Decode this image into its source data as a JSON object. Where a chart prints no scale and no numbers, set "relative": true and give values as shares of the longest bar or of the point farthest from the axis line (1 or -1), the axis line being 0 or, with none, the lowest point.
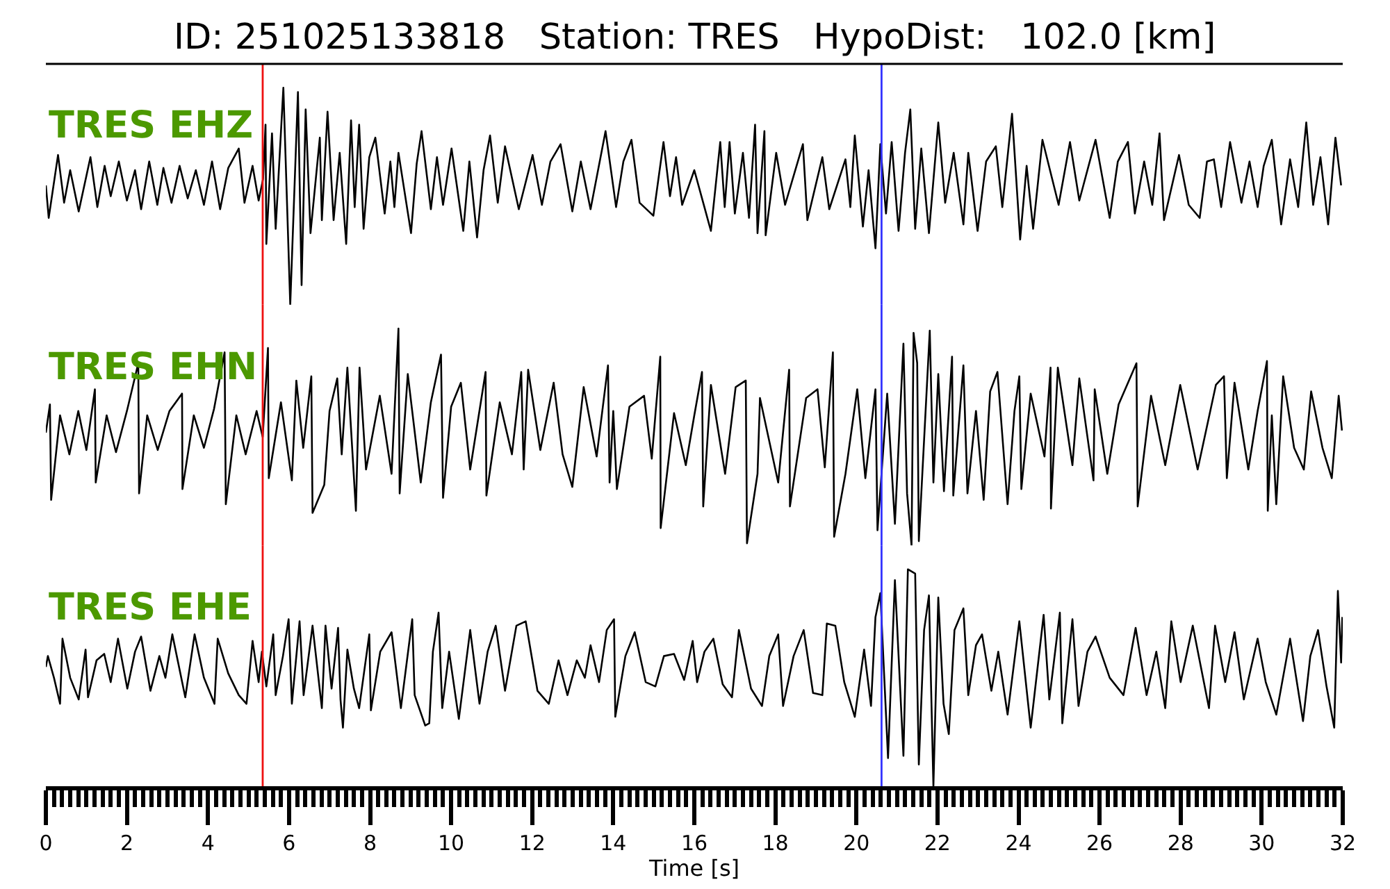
{
  "chart_data": [
    {
      "type": "line",
      "title": "ID: 251025133818   Station: TRES   HypoDist:   102.0 [km]",
      "relative": true,
      "xlim": [
        0,
        32
      ],
      "tick_labels": false,
      "ref_lines": [
        {
          "axis": "x",
          "value": 5.35,
          "color": "#ee1111"
        },
        {
          "axis": "x",
          "value": 20.62,
          "color": "#3333ff"
        }
      ],
      "x": [
        0,
        0.07,
        0.3,
        0.45,
        0.6,
        0.81,
        1.1,
        1.27,
        1.45,
        1.6,
        1.8,
        2.0,
        2.2,
        2.35,
        2.55,
        2.75,
        2.9,
        3.1,
        3.3,
        3.5,
        3.7,
        3.9,
        4.1,
        4.3,
        4.5,
        4.76,
        4.9,
        5.1,
        5.25,
        5.36,
        5.42,
        5.44,
        5.58,
        5.67,
        5.86,
        6.03,
        6.22,
        6.31,
        6.41,
        6.53,
        6.76,
        6.81,
        6.95,
        7.1,
        7.25,
        7.41,
        7.53,
        7.62,
        7.73,
        7.84,
        7.98,
        8.13,
        8.36,
        8.5,
        8.6,
        8.7,
        9.01,
        9.15,
        9.27,
        9.5,
        9.65,
        9.8,
        10.01,
        10.3,
        10.45,
        10.64,
        10.8,
        10.96,
        11.15,
        11.33,
        11.67,
        12.01,
        12.24,
        12.45,
        12.7,
        12.99,
        13.2,
        13.44,
        13.81,
        14.07,
        14.25,
        14.45,
        14.65,
        14.99,
        15.24,
        15.4,
        15.55,
        15.7,
        16.0,
        16.41,
        16.64,
        16.75,
        16.87,
        17.0,
        17.2,
        17.35,
        17.5,
        17.56,
        17.73,
        17.76,
        18.02,
        18.24,
        18.68,
        18.79,
        19.16,
        19.33,
        19.73,
        19.85,
        19.96,
        20.16,
        20.3,
        20.47,
        20.59,
        20.73,
        20.87,
        21.04,
        21.2,
        21.33,
        21.45,
        21.6,
        21.79,
        22.02,
        22.19,
        22.4,
        22.64,
        22.76,
        22.99,
        23.2,
        23.44,
        23.6,
        23.84,
        24.04,
        24.2,
        24.36,
        24.59,
        24.99,
        25.27,
        25.5,
        25.9,
        26.25,
        26.45,
        26.7,
        26.87,
        27.1,
        27.3,
        27.48,
        27.59,
        27.96,
        28.2,
        28.47,
        28.65,
        28.82,
        29.0,
        29.22,
        29.5,
        29.7,
        29.9,
        30.05,
        30.25,
        30.48,
        30.7,
        30.9,
        31.1,
        31.27,
        31.45,
        31.64,
        31.82,
        31.96
      ],
      "series": [
        {
          "name": "TRES EHZ",
          "color": "#000000",
          "values": [
            0.55,
            0.4,
            0.69,
            0.47,
            0.62,
            0.43,
            0.68,
            0.45,
            0.64,
            0.5,
            0.66,
            0.48,
            0.62,
            0.44,
            0.66,
            0.46,
            0.63,
            0.47,
            0.64,
            0.49,
            0.62,
            0.46,
            0.66,
            0.44,
            0.63,
            0.72,
            0.47,
            0.64,
            0.48,
            0.58,
            0.83,
            0.28,
            0.79,
            0.35,
            1.0,
            0.0,
            0.98,
            0.09,
            0.9,
            0.33,
            0.77,
            0.39,
            0.89,
            0.39,
            0.7,
            0.28,
            0.85,
            0.45,
            0.83,
            0.35,
            0.68,
            0.77,
            0.42,
            0.66,
            0.45,
            0.7,
            0.33,
            0.65,
            0.8,
            0.44,
            0.68,
            0.46,
            0.72,
            0.34,
            0.66,
            0.31,
            0.62,
            0.78,
            0.47,
            0.73,
            0.44,
            0.69,
            0.46,
            0.66,
            0.74,
            0.43,
            0.66,
            0.44,
            0.8,
            0.45,
            0.66,
            0.76,
            0.47,
            0.41,
            0.75,
            0.5,
            0.68,
            0.46,
            0.62,
            0.34,
            0.75,
            0.45,
            0.75,
            0.42,
            0.7,
            0.4,
            0.83,
            0.33,
            0.8,
            0.32,
            0.7,
            0.46,
            0.74,
            0.39,
            0.68,
            0.44,
            0.67,
            0.45,
            0.78,
            0.36,
            0.62,
            0.26,
            0.74,
            0.42,
            0.75,
            0.34,
            0.7,
            0.9,
            0.35,
            0.72,
            0.33,
            0.84,
            0.47,
            0.7,
            0.37,
            0.7,
            0.34,
            0.66,
            0.73,
            0.45,
            0.88,
            0.3,
            0.64,
            0.35,
            0.76,
            0.46,
            0.75,
            0.48,
            0.76,
            0.4,
            0.66,
            0.75,
            0.42,
            0.66,
            0.46,
            0.79,
            0.39,
            0.69,
            0.46,
            0.4,
            0.66,
            0.67,
            0.45,
            0.75,
            0.47,
            0.66,
            0.45,
            0.64,
            0.76,
            0.37,
            0.67,
            0.45,
            0.84,
            0.46,
            0.68,
            0.37,
            0.77,
            0.55
          ]
        }
      ]
    },
    {
      "type": "line",
      "relative": true,
      "xlim": [
        0,
        32
      ],
      "tick_labels": false,
      "ref_lines": [
        {
          "axis": "x",
          "value": 5.35,
          "color": "#ee1111"
        },
        {
          "axis": "x",
          "value": 20.62,
          "color": "#3333ff"
        }
      ],
      "x": [
        0,
        0.1,
        0.13,
        0.35,
        0.58,
        0.8,
        1.0,
        1.21,
        1.23,
        1.5,
        1.73,
        2.0,
        2.28,
        2.3,
        2.5,
        2.76,
        3.05,
        3.36,
        3.37,
        3.65,
        3.9,
        4.15,
        4.41,
        4.44,
        4.7,
        4.93,
        5.2,
        5.35,
        5.48,
        5.5,
        5.8,
        6.07,
        6.18,
        6.35,
        6.55,
        6.58,
        6.87,
        7.0,
        7.19,
        7.3,
        7.44,
        7.65,
        7.74,
        7.9,
        8.24,
        8.53,
        8.7,
        8.73,
        8.93,
        9.25,
        9.5,
        9.75,
        9.8,
        10.0,
        10.24,
        10.47,
        10.85,
        10.87,
        11.2,
        11.5,
        11.73,
        11.79,
        11.9,
        12.2,
        12.53,
        12.75,
        12.99,
        13.27,
        13.59,
        13.87,
        13.91,
        14.0,
        14.09,
        14.4,
        14.76,
        14.95,
        15.16,
        15.17,
        15.5,
        15.79,
        16.0,
        16.19,
        16.22,
        16.41,
        16.76,
        17.02,
        17.27,
        17.3,
        17.56,
        17.62,
        18.07,
        18.34,
        18.36,
        18.76,
        19.04,
        19.22,
        19.42,
        19.45,
        19.73,
        20.02,
        20.22,
        20.47,
        20.52,
        20.76,
        20.95,
        21.16,
        21.25,
        21.36,
        21.41,
        21.5,
        21.54,
        21.81,
        21.9,
        22.02,
        22.16,
        22.36,
        22.39,
        22.64,
        22.74,
        22.95,
        23.14,
        23.3,
        23.48,
        23.73,
        23.9,
        24.02,
        24.07,
        24.3,
        24.64,
        24.79,
        24.8,
        24.97,
        25.33,
        25.5,
        25.85,
        25.88,
        26.19,
        26.47,
        26.91,
        26.94,
        27.27,
        27.62,
        27.99,
        28.42,
        28.87,
        29.07,
        29.14,
        29.33,
        29.67,
        29.9,
        30.13,
        30.15,
        30.25,
        30.36,
        30.53,
        30.8,
        31.04,
        31.22,
        31.5,
        31.73,
        31.9,
        31.98
      ],
      "series": [
        {
          "name": "TRES EHN",
          "color": "#000000",
          "values": [
            0.52,
            0.65,
            0.21,
            0.6,
            0.42,
            0.62,
            0.44,
            0.72,
            0.29,
            0.6,
            0.43,
            0.62,
            0.84,
            0.24,
            0.6,
            0.44,
            0.62,
            0.7,
            0.26,
            0.6,
            0.45,
            0.63,
            0.89,
            0.19,
            0.6,
            0.42,
            0.62,
            0.5,
            0.91,
            0.31,
            0.66,
            0.3,
            0.76,
            0.45,
            0.78,
            0.15,
            0.28,
            0.62,
            0.77,
            0.42,
            0.82,
            0.16,
            0.82,
            0.35,
            0.69,
            0.33,
            1.0,
            0.24,
            0.79,
            0.29,
            0.66,
            0.88,
            0.22,
            0.64,
            0.75,
            0.35,
            0.8,
            0.23,
            0.66,
            0.42,
            0.8,
            0.35,
            0.81,
            0.44,
            0.75,
            0.42,
            0.27,
            0.73,
            0.41,
            0.83,
            0.29,
            0.62,
            0.26,
            0.64,
            0.69,
            0.4,
            0.87,
            0.08,
            0.61,
            0.37,
            0.6,
            0.8,
            0.18,
            0.74,
            0.33,
            0.73,
            0.76,
            0.01,
            0.33,
            0.68,
            0.29,
            0.81,
            0.18,
            0.68,
            0.72,
            0.36,
            0.89,
            0.04,
            0.33,
            0.72,
            0.31,
            0.72,
            0.07,
            0.7,
            0.1,
            0.93,
            0.24,
            0.0,
            0.98,
            0.84,
            0.02,
            0.99,
            0.29,
            0.79,
            0.25,
            0.87,
            0.23,
            0.83,
            0.24,
            0.62,
            0.21,
            0.71,
            0.8,
            0.19,
            0.62,
            0.78,
            0.26,
            0.7,
            0.41,
            0.82,
            0.17,
            0.82,
            0.37,
            0.77,
            0.3,
            0.72,
            0.33,
            0.65,
            0.84,
            0.18,
            0.69,
            0.37,
            0.74,
            0.35,
            0.74,
            0.78,
            0.31,
            0.75,
            0.35,
            0.62,
            0.85,
            0.16,
            0.6,
            0.19,
            0.78,
            0.45,
            0.35,
            0.71,
            0.45,
            0.31,
            0.69,
            0.53
          ]
        }
      ]
    },
    {
      "type": "line",
      "relative": true,
      "xlim": [
        0,
        32
      ],
      "tick_labels": "x",
      "xlabel": "Time [s]",
      "xticks": [
        0,
        {
          "value": 0.2,
          "label": null
        },
        {
          "value": 0.4,
          "label": null
        },
        {
          "value": 0.6,
          "label": null
        },
        {
          "value": 0.8,
          "label": null
        },
        {
          "value": 1,
          "label": null
        },
        {
          "value": 1.2,
          "label": null
        },
        {
          "value": 1.4,
          "label": null
        },
        {
          "value": 1.6,
          "label": null
        },
        {
          "value": 1.8,
          "label": null
        },
        2,
        {
          "value": 2.2,
          "label": null
        },
        {
          "value": 2.4,
          "label": null
        },
        {
          "value": 2.6,
          "label": null
        },
        {
          "value": 2.8,
          "label": null
        },
        {
          "value": 3,
          "label": null
        },
        {
          "value": 3.2,
          "label": null
        },
        {
          "value": 3.4,
          "label": null
        },
        {
          "value": 3.6,
          "label": null
        },
        {
          "value": 3.8,
          "label": null
        },
        4,
        {
          "value": 4.2,
          "label": null
        },
        {
          "value": 4.4,
          "label": null
        },
        {
          "value": 4.6,
          "label": null
        },
        {
          "value": 4.8,
          "label": null
        },
        {
          "value": 5,
          "label": null
        },
        {
          "value": 5.2,
          "label": null
        },
        {
          "value": 5.4,
          "label": null
        },
        {
          "value": 5.6,
          "label": null
        },
        {
          "value": 5.8,
          "label": null
        },
        6,
        {
          "value": 6.2,
          "label": null
        },
        {
          "value": 6.4,
          "label": null
        },
        {
          "value": 6.6,
          "label": null
        },
        {
          "value": 6.8,
          "label": null
        },
        {
          "value": 7,
          "label": null
        },
        {
          "value": 7.2,
          "label": null
        },
        {
          "value": 7.4,
          "label": null
        },
        {
          "value": 7.6,
          "label": null
        },
        {
          "value": 7.8,
          "label": null
        },
        8,
        {
          "value": 8.2,
          "label": null
        },
        {
          "value": 8.4,
          "label": null
        },
        {
          "value": 8.6,
          "label": null
        },
        {
          "value": 8.8,
          "label": null
        },
        {
          "value": 9,
          "label": null
        },
        {
          "value": 9.2,
          "label": null
        },
        {
          "value": 9.4,
          "label": null
        },
        {
          "value": 9.6,
          "label": null
        },
        {
          "value": 9.8,
          "label": null
        },
        10,
        {
          "value": 10.2,
          "label": null
        },
        {
          "value": 10.4,
          "label": null
        },
        {
          "value": 10.6,
          "label": null
        },
        {
          "value": 10.8,
          "label": null
        },
        {
          "value": 11,
          "label": null
        },
        {
          "value": 11.2,
          "label": null
        },
        {
          "value": 11.4,
          "label": null
        },
        {
          "value": 11.6,
          "label": null
        },
        {
          "value": 11.8,
          "label": null
        },
        12,
        {
          "value": 12.2,
          "label": null
        },
        {
          "value": 12.4,
          "label": null
        },
        {
          "value": 12.6,
          "label": null
        },
        {
          "value": 12.8,
          "label": null
        },
        {
          "value": 13,
          "label": null
        },
        {
          "value": 13.2,
          "label": null
        },
        {
          "value": 13.4,
          "label": null
        },
        {
          "value": 13.6,
          "label": null
        },
        {
          "value": 13.8,
          "label": null
        },
        14,
        {
          "value": 14.2,
          "label": null
        },
        {
          "value": 14.4,
          "label": null
        },
        {
          "value": 14.6,
          "label": null
        },
        {
          "value": 14.8,
          "label": null
        },
        {
          "value": 15,
          "label": null
        },
        {
          "value": 15.2,
          "label": null
        },
        {
          "value": 15.4,
          "label": null
        },
        {
          "value": 15.6,
          "label": null
        },
        {
          "value": 15.8,
          "label": null
        },
        16,
        {
          "value": 16.2,
          "label": null
        },
        {
          "value": 16.4,
          "label": null
        },
        {
          "value": 16.6,
          "label": null
        },
        {
          "value": 16.8,
          "label": null
        },
        {
          "value": 17,
          "label": null
        },
        {
          "value": 17.2,
          "label": null
        },
        {
          "value": 17.4,
          "label": null
        },
        {
          "value": 17.6,
          "label": null
        },
        {
          "value": 17.8,
          "label": null
        },
        18,
        {
          "value": 18.2,
          "label": null
        },
        {
          "value": 18.4,
          "label": null
        },
        {
          "value": 18.6,
          "label": null
        },
        {
          "value": 18.8,
          "label": null
        },
        {
          "value": 19,
          "label": null
        },
        {
          "value": 19.2,
          "label": null
        },
        {
          "value": 19.4,
          "label": null
        },
        {
          "value": 19.6,
          "label": null
        },
        {
          "value": 19.8,
          "label": null
        },
        20,
        {
          "value": 20.2,
          "label": null
        },
        {
          "value": 20.4,
          "label": null
        },
        {
          "value": 20.6,
          "label": null
        },
        {
          "value": 20.8,
          "label": null
        },
        {
          "value": 21,
          "label": null
        },
        {
          "value": 21.2,
          "label": null
        },
        {
          "value": 21.4,
          "label": null
        },
        {
          "value": 21.6,
          "label": null
        },
        {
          "value": 21.8,
          "label": null
        },
        22,
        {
          "value": 22.2,
          "label": null
        },
        {
          "value": 22.4,
          "label": null
        },
        {
          "value": 22.6,
          "label": null
        },
        {
          "value": 22.8,
          "label": null
        },
        {
          "value": 23,
          "label": null
        },
        {
          "value": 23.2,
          "label": null
        },
        {
          "value": 23.4,
          "label": null
        },
        {
          "value": 23.6,
          "label": null
        },
        {
          "value": 23.8,
          "label": null
        },
        24,
        {
          "value": 24.2,
          "label": null
        },
        {
          "value": 24.4,
          "label": null
        },
        {
          "value": 24.6,
          "label": null
        },
        {
          "value": 24.8,
          "label": null
        },
        {
          "value": 25,
          "label": null
        },
        {
          "value": 25.2,
          "label": null
        },
        {
          "value": 25.4,
          "label": null
        },
        {
          "value": 25.6,
          "label": null
        },
        {
          "value": 25.8,
          "label": null
        },
        26,
        {
          "value": 26.2,
          "label": null
        },
        {
          "value": 26.4,
          "label": null
        },
        {
          "value": 26.6,
          "label": null
        },
        {
          "value": 26.8,
          "label": null
        },
        {
          "value": 27,
          "label": null
        },
        {
          "value": 27.2,
          "label": null
        },
        {
          "value": 27.4,
          "label": null
        },
        {
          "value": 27.6,
          "label": null
        },
        {
          "value": 27.8,
          "label": null
        },
        28,
        {
          "value": 28.2,
          "label": null
        },
        {
          "value": 28.4,
          "label": null
        },
        {
          "value": 28.6,
          "label": null
        },
        {
          "value": 28.8,
          "label": null
        },
        {
          "value": 29,
          "label": null
        },
        {
          "value": 29.2,
          "label": null
        },
        {
          "value": 29.4,
          "label": null
        },
        {
          "value": 29.6,
          "label": null
        },
        {
          "value": 29.8,
          "label": null
        },
        30,
        {
          "value": 30.2,
          "label": null
        },
        {
          "value": 30.4,
          "label": null
        },
        {
          "value": 30.6,
          "label": null
        },
        {
          "value": 30.8,
          "label": null
        },
        {
          "value": 31,
          "label": null
        },
        {
          "value": 31.2,
          "label": null
        },
        {
          "value": 31.4,
          "label": null
        },
        {
          "value": 31.6,
          "label": null
        },
        {
          "value": 31.8,
          "label": null
        },
        32
      ],
      "ref_lines": [
        {
          "axis": "x",
          "value": 5.35,
          "color": "#ee1111"
        },
        {
          "axis": "x",
          "value": 20.62,
          "color": "#3333ff"
        }
      ],
      "x": [
        0,
        0.05,
        0.2,
        0.35,
        0.41,
        0.6,
        0.81,
        0.98,
        1.04,
        1.25,
        1.44,
        1.6,
        1.78,
        2.01,
        2.2,
        2.35,
        2.58,
        2.8,
        2.95,
        3.12,
        3.44,
        3.67,
        3.9,
        4.16,
        4.24,
        4.5,
        4.76,
        4.95,
        5.1,
        5.25,
        5.33,
        5.44,
        5.61,
        5.67,
        5.85,
        5.99,
        6.07,
        6.26,
        6.36,
        6.58,
        6.81,
        6.9,
        7.05,
        7.21,
        7.27,
        7.33,
        7.44,
        7.6,
        7.73,
        7.98,
        8.02,
        8.25,
        8.53,
        8.76,
        9.04,
        9.1,
        9.36,
        9.46,
        9.55,
        9.69,
        9.78,
        9.95,
        10.19,
        10.47,
        10.7,
        10.9,
        11.1,
        11.33,
        11.61,
        11.84,
        12.13,
        12.41,
        12.65,
        12.87,
        13.1,
        13.3,
        13.44,
        13.65,
        13.84,
        14.02,
        14.05,
        14.3,
        14.53,
        14.8,
        15.04,
        15.25,
        15.5,
        15.75,
        15.96,
        16.07,
        16.25,
        16.47,
        16.7,
        16.93,
        17.1,
        17.4,
        17.67,
        17.85,
        18.07,
        18.19,
        18.45,
        18.7,
        18.93,
        19.16,
        19.27,
        19.48,
        19.7,
        19.96,
        20.19,
        20.36,
        20.47,
        20.59,
        20.78,
        20.95,
        21.16,
        21.27,
        21.45,
        21.54,
        21.67,
        21.79,
        21.9,
        22.02,
        22.15,
        22.28,
        22.42,
        22.64,
        22.76,
        22.95,
        23.1,
        23.33,
        23.5,
        23.73,
        24.02,
        24.3,
        24.62,
        24.76,
        25.02,
        25.08,
        25.33,
        25.48,
        25.7,
        25.9,
        26.25,
        26.59,
        26.89,
        27.16,
        27.4,
        27.62,
        27.77,
        28.0,
        28.3,
        28.7,
        28.85,
        29.1,
        29.33,
        29.56,
        29.9,
        30.1,
        30.36,
        30.7,
        31.02,
        31.2,
        31.39,
        31.6,
        31.79,
        31.88,
        31.96,
        31.99
      ],
      "series": [
        {
          "name": "TRES EHE",
          "color": "#000000",
          "values": [
            0.55,
            0.6,
            0.5,
            0.38,
            0.68,
            0.5,
            0.4,
            0.63,
            0.41,
            0.58,
            0.61,
            0.48,
            0.68,
            0.45,
            0.62,
            0.69,
            0.44,
            0.6,
            0.5,
            0.7,
            0.41,
            0.7,
            0.5,
            0.38,
            0.68,
            0.52,
            0.42,
            0.38,
            0.67,
            0.48,
            0.62,
            0.46,
            0.7,
            0.42,
            0.6,
            0.77,
            0.38,
            0.76,
            0.42,
            0.74,
            0.36,
            0.74,
            0.45,
            0.73,
            0.4,
            0.27,
            0.63,
            0.45,
            0.36,
            0.7,
            0.35,
            0.62,
            0.71,
            0.36,
            0.77,
            0.42,
            0.28,
            0.29,
            0.62,
            0.8,
            0.36,
            0.62,
            0.31,
            0.72,
            0.38,
            0.62,
            0.74,
            0.44,
            0.74,
            0.76,
            0.44,
            0.38,
            0.58,
            0.42,
            0.58,
            0.5,
            0.65,
            0.48,
            0.72,
            0.77,
            0.32,
            0.6,
            0.71,
            0.48,
            0.46,
            0.6,
            0.61,
            0.49,
            0.67,
            0.48,
            0.62,
            0.68,
            0.47,
            0.41,
            0.72,
            0.45,
            0.37,
            0.6,
            0.7,
            0.37,
            0.6,
            0.72,
            0.43,
            0.42,
            0.75,
            0.74,
            0.48,
            0.32,
            0.63,
            0.37,
            0.78,
            0.89,
            0.13,
            0.95,
            0.14,
            1.0,
            0.98,
            0.1,
            0.72,
            0.88,
            0.0,
            0.87,
            0.38,
            0.24,
            0.72,
            0.82,
            0.42,
            0.65,
            0.7,
            0.44,
            0.62,
            0.33,
            0.76,
            0.27,
            0.79,
            0.4,
            0.8,
            0.29,
            0.77,
            0.37,
            0.62,
            0.69,
            0.5,
            0.42,
            0.73,
            0.42,
            0.62,
            0.36,
            0.76,
            0.48,
            0.74,
            0.36,
            0.74,
            0.48,
            0.71,
            0.4,
            0.68,
            0.48,
            0.33,
            0.68,
            0.3,
            0.6,
            0.72,
            0.46,
            0.27,
            0.9,
            0.57,
            0.78
          ]
        }
      ]
    }
  ]
}
